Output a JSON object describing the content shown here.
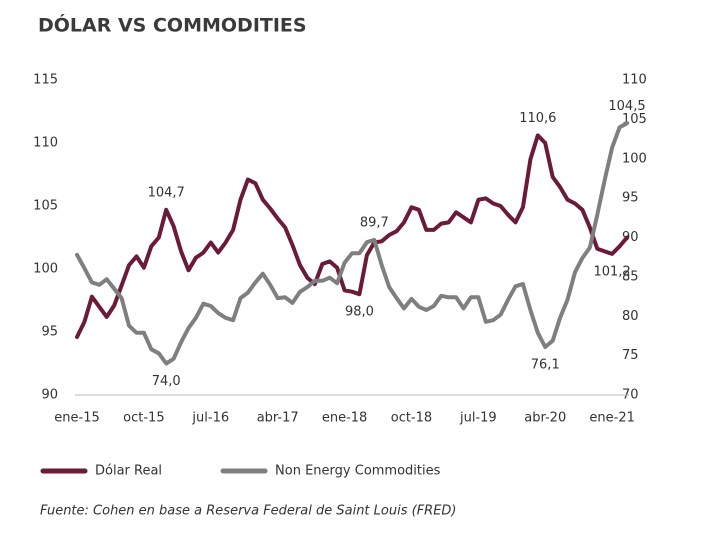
{
  "chart_data": {
    "type": "line",
    "title": "DÓLAR VS COMMODITIES",
    "source": "Fuente: Cohen en base a Reserva Federal de Saint Louis (FRED)",
    "categories": [
      "ene-15",
      null,
      null,
      null,
      null,
      null,
      null,
      null,
      null,
      "oct-15",
      null,
      null,
      null,
      null,
      null,
      null,
      null,
      null,
      "jul-16",
      null,
      null,
      null,
      null,
      null,
      null,
      null,
      null,
      "abr-17",
      null,
      null,
      null,
      null,
      null,
      null,
      null,
      null,
      "ene-18",
      null,
      null,
      null,
      null,
      null,
      null,
      null,
      null,
      "oct-18",
      null,
      null,
      null,
      null,
      null,
      null,
      null,
      null,
      "jul-19",
      null,
      null,
      null,
      null,
      null,
      null,
      null,
      null,
      "abr-20",
      null,
      null,
      null,
      null,
      null,
      null,
      null,
      null,
      "ene-21",
      null,
      null
    ],
    "ylim": [
      90,
      115
    ],
    "yticks": [
      90,
      95,
      100,
      105,
      110,
      115
    ],
    "y2lim": [
      70,
      110
    ],
    "y2ticks": [
      70,
      75,
      80,
      85,
      90,
      95,
      100,
      105,
      110
    ],
    "legend": "bottom-left",
    "series": [
      {
        "name": "Dólar Real",
        "color": "#6b1b38",
        "axis": "y",
        "values": [
          94.6,
          95.8,
          97.8,
          97.0,
          96.2,
          97.1,
          98.7,
          100.3,
          101.0,
          100.1,
          101.8,
          102.5,
          104.7,
          103.4,
          101.4,
          99.9,
          100.9,
          101.3,
          102.1,
          101.3,
          102.1,
          103.1,
          105.5,
          107.1,
          106.8,
          105.5,
          104.8,
          104.0,
          103.3,
          101.9,
          100.3,
          99.3,
          98.8,
          100.4,
          100.6,
          100.1,
          98.3,
          98.2,
          98.0,
          101.1,
          102.1,
          102.2,
          102.7,
          103.0,
          103.7,
          104.9,
          104.7,
          103.1,
          103.1,
          103.6,
          103.7,
          104.5,
          104.1,
          103.7,
          105.5,
          105.6,
          105.2,
          105.0,
          104.3,
          103.7,
          104.9,
          108.7,
          110.6,
          110.0,
          107.3,
          106.5,
          105.5,
          105.2,
          104.7,
          103.3,
          101.6,
          101.4,
          101.2,
          101.8,
          102.5
        ],
        "value_labels": [
          null,
          null,
          null,
          null,
          null,
          null,
          null,
          null,
          null,
          null,
          null,
          null,
          "104,7",
          null,
          null,
          null,
          null,
          null,
          null,
          null,
          null,
          null,
          null,
          null,
          null,
          null,
          null,
          null,
          null,
          null,
          null,
          null,
          null,
          null,
          null,
          null,
          null,
          null,
          "98,0",
          null,
          null,
          null,
          null,
          null,
          null,
          null,
          null,
          null,
          null,
          null,
          null,
          null,
          null,
          null,
          null,
          null,
          null,
          null,
          null,
          null,
          null,
          null,
          "110,6",
          null,
          null,
          null,
          null,
          null,
          null,
          null,
          null,
          null,
          "101,2",
          null,
          null
        ]
      },
      {
        "name": "Non Energy Commodities",
        "color": "#7f7f7f",
        "axis": "y2",
        "values": [
          87.8,
          86.1,
          84.3,
          84.0,
          84.7,
          83.5,
          82.3,
          78.8,
          77.9,
          77.9,
          75.8,
          75.3,
          74.0,
          74.6,
          76.7,
          78.5,
          79.8,
          81.6,
          81.3,
          80.4,
          79.8,
          79.5,
          82.3,
          83.0,
          84.3,
          85.4,
          84.0,
          82.3,
          82.4,
          81.7,
          83.1,
          83.7,
          84.5,
          84.5,
          84.9,
          84.2,
          86.8,
          88.0,
          88.0,
          89.4,
          89.7,
          86.5,
          83.7,
          82.3,
          81.0,
          82.2,
          81.2,
          80.8,
          81.3,
          82.6,
          82.4,
          82.4,
          81.0,
          82.4,
          82.4,
          79.3,
          79.5,
          80.2,
          82.1,
          83.8,
          84.1,
          80.8,
          77.9,
          76.1,
          76.9,
          79.8,
          82.1,
          85.6,
          87.4,
          88.7,
          92.9,
          97.3,
          101.4,
          104.0,
          104.5
        ],
        "value_labels": [
          null,
          null,
          null,
          null,
          null,
          null,
          null,
          null,
          null,
          null,
          null,
          null,
          "74,0",
          null,
          null,
          null,
          null,
          null,
          null,
          null,
          null,
          null,
          null,
          null,
          null,
          null,
          null,
          null,
          null,
          null,
          null,
          null,
          null,
          null,
          null,
          null,
          null,
          null,
          null,
          null,
          "89,7",
          null,
          null,
          null,
          null,
          null,
          null,
          null,
          null,
          null,
          null,
          null,
          null,
          null,
          null,
          null,
          null,
          null,
          null,
          null,
          null,
          null,
          null,
          "76,1",
          null,
          null,
          null,
          null,
          null,
          null,
          null,
          null,
          null,
          null,
          "104,5"
        ]
      }
    ]
  }
}
